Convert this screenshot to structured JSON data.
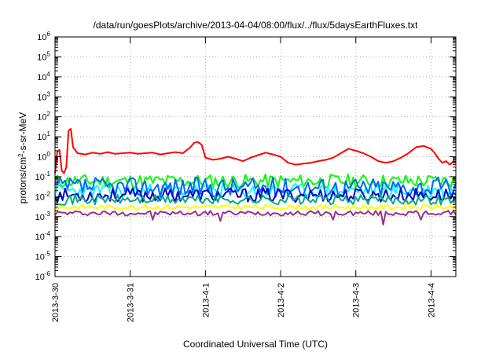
{
  "chart_data": {
    "type": "line",
    "title": "/data/run/goesPlots/archive/2013-04-04/08:00/flux/../flux/5daysEarthFluxes.txt",
    "xlabel": "Coordinated Universal Time (UTC)",
    "ylabel_main": "protons/cm",
    "ylabel_sup": "2",
    "ylabel_rest": "-s-sr-MeV",
    "x_tick_labels": [
      "2013-3-30",
      "2013-3-31",
      "2013-4-1",
      "2013-4-2",
      "2013-4-3",
      "2013-4-4"
    ],
    "x_range_days": [
      0,
      5.33
    ],
    "y_scale": "log",
    "ylim": [
      1e-06,
      1000000.0
    ],
    "y_ticks": [
      {
        "exp": "-6"
      },
      {
        "exp": "-5"
      },
      {
        "exp": "-4"
      },
      {
        "exp": "-3"
      },
      {
        "exp": "-2"
      },
      {
        "exp": "-1"
      },
      {
        "exp": "0"
      },
      {
        "exp": "1"
      },
      {
        "exp": "2"
      },
      {
        "exp": "3"
      },
      {
        "exp": "4"
      },
      {
        "exp": "5"
      },
      {
        "exp": "6"
      }
    ],
    "grid": true,
    "series": [
      {
        "color": "#ff0000",
        "base": 1.5,
        "points": [
          [
            0.0,
            0.15
          ],
          [
            0.03,
            1.8
          ],
          [
            0.06,
            2.2
          ],
          [
            0.09,
            0.2
          ],
          [
            0.12,
            0.15
          ],
          [
            0.15,
            0.3
          ],
          [
            0.18,
            20
          ],
          [
            0.21,
            25
          ],
          [
            0.24,
            3
          ],
          [
            0.3,
            1.5
          ],
          [
            0.4,
            1.3
          ],
          [
            0.5,
            1.6
          ],
          [
            0.6,
            1.4
          ],
          [
            0.7,
            1.7
          ],
          [
            0.8,
            1.4
          ],
          [
            0.9,
            1.5
          ],
          [
            1.0,
            1.6
          ],
          [
            1.1,
            1.4
          ],
          [
            1.2,
            1.5
          ],
          [
            1.3,
            1.6
          ],
          [
            1.4,
            1.3
          ],
          [
            1.5,
            1.5
          ],
          [
            1.6,
            1.7
          ],
          [
            1.7,
            1.5
          ],
          [
            1.8,
            3
          ],
          [
            1.85,
            5
          ],
          [
            1.9,
            5.5
          ],
          [
            1.95,
            4
          ],
          [
            2.0,
            0.9
          ],
          [
            2.05,
            0.8
          ],
          [
            2.1,
            0.7
          ],
          [
            2.2,
            0.8
          ],
          [
            2.3,
            1.0
          ],
          [
            2.4,
            0.8
          ],
          [
            2.5,
            0.6
          ],
          [
            2.6,
            0.9
          ],
          [
            2.7,
            1.2
          ],
          [
            2.8,
            1.6
          ],
          [
            2.9,
            1.3
          ],
          [
            3.0,
            1.0
          ],
          [
            3.1,
            0.5
          ],
          [
            3.2,
            0.4
          ],
          [
            3.3,
            0.45
          ],
          [
            3.4,
            0.5
          ],
          [
            3.5,
            0.6
          ],
          [
            3.6,
            0.7
          ],
          [
            3.7,
            0.9
          ],
          [
            3.8,
            1.5
          ],
          [
            3.9,
            2.5
          ],
          [
            4.0,
            2.0
          ],
          [
            4.1,
            1.5
          ],
          [
            4.2,
            1.0
          ],
          [
            4.3,
            0.6
          ],
          [
            4.4,
            0.5
          ],
          [
            4.5,
            0.6
          ],
          [
            4.6,
            0.9
          ],
          [
            4.7,
            1.5
          ],
          [
            4.8,
            3.0
          ],
          [
            4.9,
            3.5
          ],
          [
            5.0,
            2.5
          ],
          [
            5.05,
            1.5
          ],
          [
            5.1,
            0.8
          ],
          [
            5.15,
            0.5
          ],
          [
            5.2,
            0.6
          ],
          [
            5.25,
            0.4
          ],
          [
            5.3,
            0.6
          ],
          [
            5.33,
            0.5
          ]
        ]
      },
      {
        "color": "#00ff00",
        "base": 0.06,
        "noise": 0.35,
        "seed": 11
      },
      {
        "color": "#00ffff",
        "base": 0.02,
        "noise": 0.35,
        "seed": 23
      },
      {
        "color": "#0066ff",
        "base": 0.03,
        "noise": 0.5,
        "seed": 37
      },
      {
        "color": "#0000cc",
        "base": 0.012,
        "noise": 0.35,
        "seed": 53
      },
      {
        "color": "#00aa88",
        "base": 0.007,
        "noise": 0.25,
        "seed": 71
      },
      {
        "color": "#ffff00",
        "base": 0.003,
        "noise": 0.12,
        "seed": 83
      },
      {
        "color": "#993388",
        "base": 0.0015,
        "noise": 0.12,
        "seed": 97,
        "dips": [
          [
            1.3,
            0.0007
          ],
          [
            2.2,
            0.0006
          ],
          [
            3.7,
            0.0007
          ],
          [
            4.38,
            0.0004
          ],
          [
            4.85,
            0.0007
          ]
        ]
      }
    ]
  }
}
